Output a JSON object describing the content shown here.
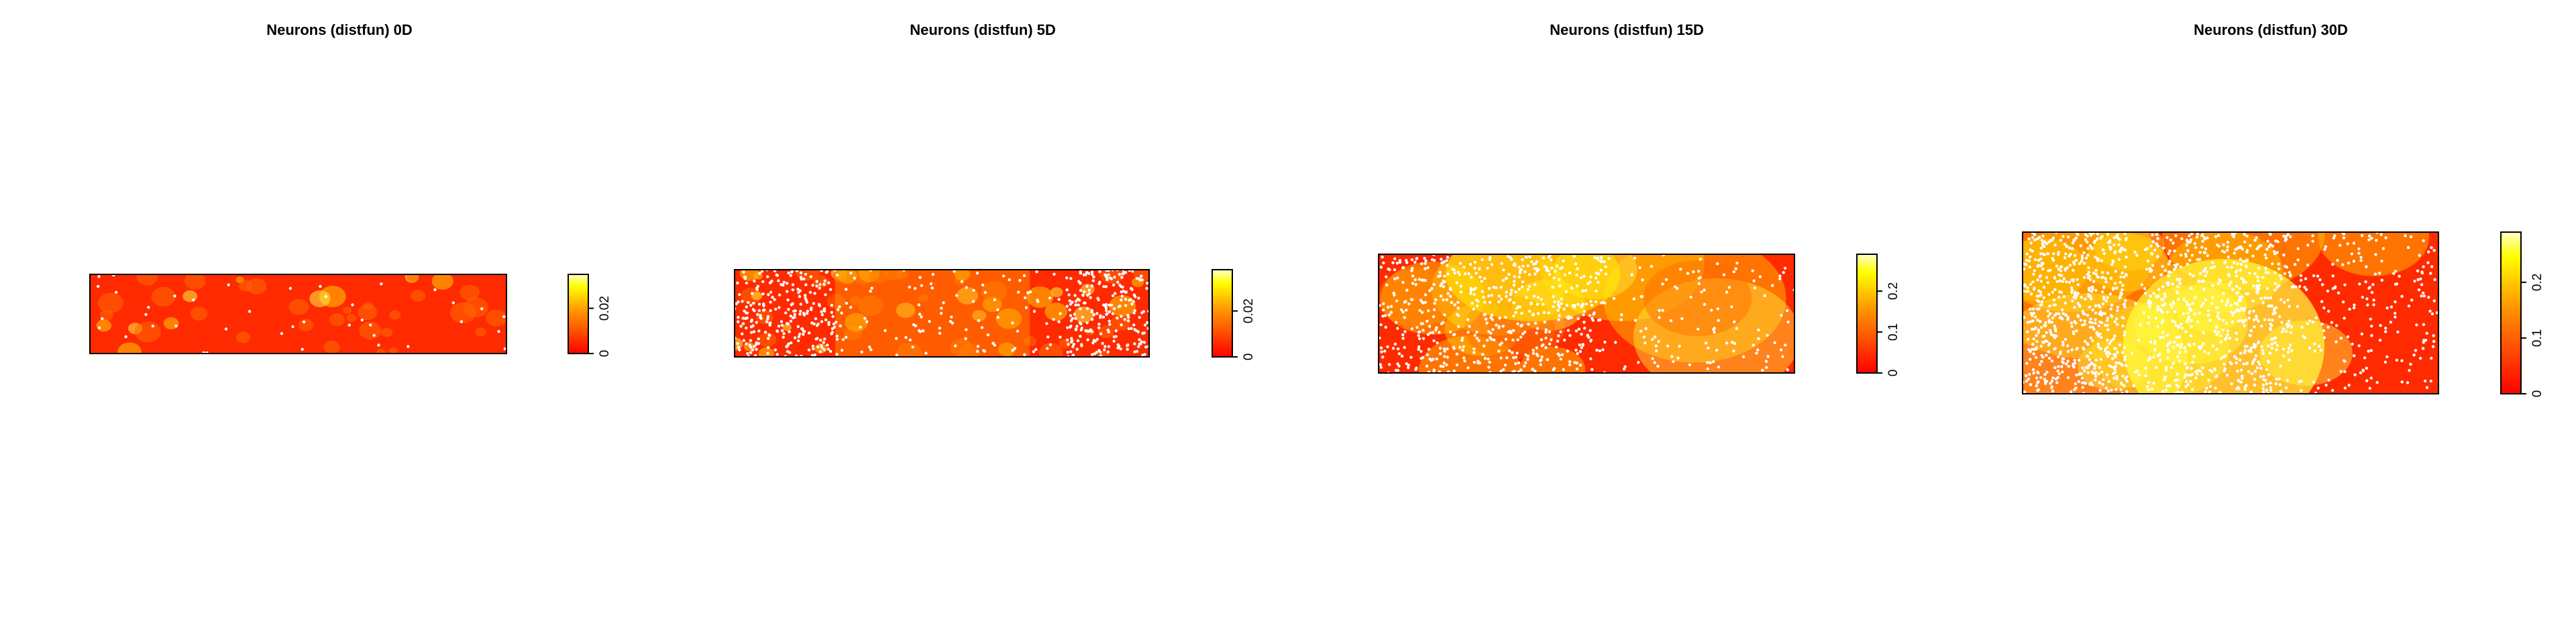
{
  "chart_data": [
    {
      "type": "heatmap",
      "title": "Neurons (distfun) 0D",
      "colorbar": {
        "ticks": [
          0,
          0.02
        ],
        "tick_labels": [
          "0",
          "0.02"
        ],
        "range": [
          0,
          0.035
        ]
      },
      "palette": [
        "#ff0000",
        "#ffff00",
        "#ffffff"
      ],
      "point_color": "#ffffff",
      "xlabel": "",
      "ylabel": "",
      "grid": false
    },
    {
      "type": "heatmap",
      "title": "Neurons (distfun) 5D",
      "colorbar": {
        "ticks": [
          0,
          0.02
        ],
        "tick_labels": [
          "0",
          "0.02"
        ],
        "range": [
          0,
          0.038
        ]
      },
      "palette": [
        "#ff0000",
        "#ffff00",
        "#ffffff"
      ],
      "point_color": "#ffffff",
      "xlabel": "",
      "ylabel": "",
      "grid": false
    },
    {
      "type": "heatmap",
      "title": "Neurons (distfun) 15D",
      "colorbar": {
        "ticks": [
          0,
          0.1,
          0.2
        ],
        "tick_labels": [
          "0",
          "0.1",
          "0.2"
        ],
        "range": [
          0,
          0.29
        ]
      },
      "palette": [
        "#ff0000",
        "#ffff00",
        "#ffffff"
      ],
      "point_color": "#ffffff",
      "xlabel": "",
      "ylabel": "",
      "grid": false
    },
    {
      "type": "heatmap",
      "title": "Neurons (distfun) 30D",
      "colorbar": {
        "ticks": [
          0,
          0.1,
          0.2
        ],
        "tick_labels": [
          "0",
          "0.1",
          "0.2"
        ],
        "range": [
          0,
          0.29
        ]
      },
      "palette": [
        "#ff0000",
        "#ffff00",
        "#ffffff"
      ],
      "point_color": "#ffffff",
      "xlabel": "",
      "ylabel": "",
      "grid": false
    }
  ]
}
